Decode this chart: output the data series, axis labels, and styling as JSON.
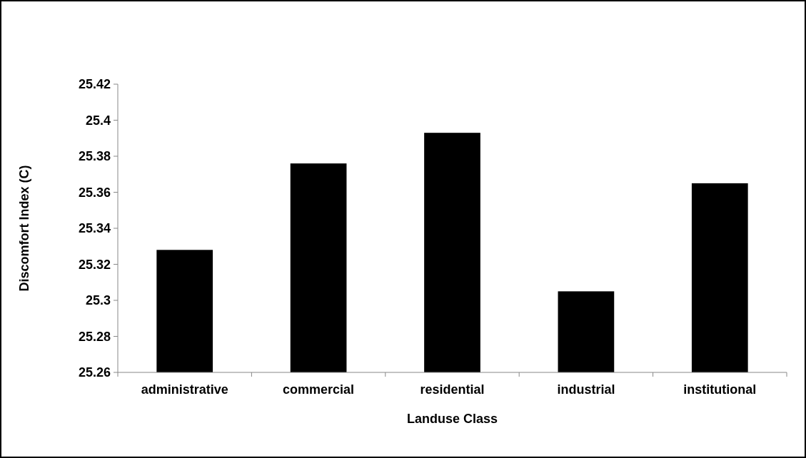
{
  "chart_data": {
    "type": "bar",
    "xlabel": "Landuse Class",
    "ylabel": "Discomfort Index (C)",
    "categories": [
      "administrative",
      "commercial",
      "residential",
      "industrial",
      "institutional"
    ],
    "values": [
      25.328,
      25.376,
      25.393,
      25.305,
      25.365
    ],
    "color": "#000000",
    "ylim": [
      25.26,
      25.42
    ],
    "yticks": [
      25.26,
      25.28,
      25.3,
      25.32,
      25.34,
      25.36,
      25.38,
      25.4,
      25.42
    ],
    "grid": false
  }
}
